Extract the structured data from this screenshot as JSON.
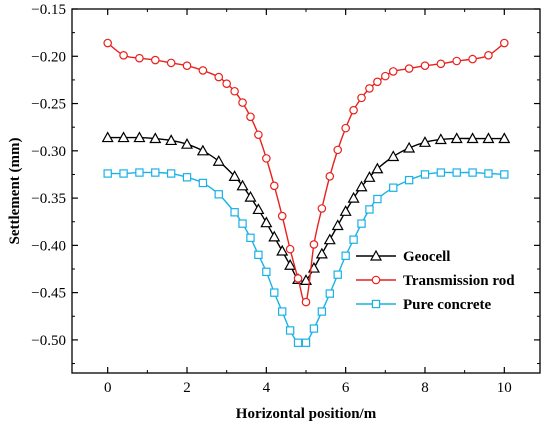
{
  "chart_data": {
    "type": "line",
    "title": "",
    "xlabel": "Horizontal position/m",
    "ylabel": "Settlement (mm)",
    "xlim": [
      -0.9,
      10.9
    ],
    "ylim": [
      -0.535,
      -0.15
    ],
    "xticks": [
      0,
      2,
      4,
      6,
      8,
      10
    ],
    "yticks": [
      -0.15,
      -0.2,
      -0.25,
      -0.3,
      -0.35,
      -0.4,
      -0.45,
      -0.5
    ],
    "xtick_labels": [
      "0",
      "2",
      "4",
      "6",
      "8",
      "10"
    ],
    "ytick_labels": [
      "−0.15",
      "−0.20",
      "−0.25",
      "−0.30",
      "−0.35",
      "−0.40",
      "−0.45",
      "−0.50"
    ],
    "grid": false,
    "legend_position": "lower-right",
    "series": [
      {
        "name": "Geocell",
        "color": "#000000",
        "marker": "triangle",
        "x": [
          0,
          0.4,
          0.8,
          1.2,
          1.6,
          2.0,
          2.4,
          2.8,
          3.2,
          3.4,
          3.6,
          3.8,
          4.0,
          4.2,
          4.4,
          4.6,
          4.8,
          5.0,
          5.2,
          5.4,
          5.6,
          5.8,
          6.0,
          6.2,
          6.4,
          6.6,
          6.8,
          7.2,
          7.6,
          8.0,
          8.4,
          8.8,
          9.2,
          9.6,
          10.0
        ],
        "y": [
          -0.286,
          -0.286,
          -0.286,
          -0.287,
          -0.289,
          -0.293,
          -0.3,
          -0.311,
          -0.327,
          -0.337,
          -0.349,
          -0.362,
          -0.376,
          -0.391,
          -0.406,
          -0.421,
          -0.436,
          -0.437,
          -0.424,
          -0.409,
          -0.394,
          -0.379,
          -0.364,
          -0.35,
          -0.338,
          -0.328,
          -0.319,
          -0.306,
          -0.297,
          -0.291,
          -0.288,
          -0.287,
          -0.287,
          -0.287,
          -0.287
        ]
      },
      {
        "name": "Transmission rod",
        "color": "#e8211c",
        "marker": "circle",
        "x": [
          0,
          0.4,
          0.8,
          1.2,
          1.6,
          2.0,
          2.4,
          2.8,
          3.0,
          3.2,
          3.4,
          3.6,
          3.8,
          4.0,
          4.2,
          4.4,
          4.6,
          4.8,
          5.0,
          5.2,
          5.4,
          5.6,
          5.8,
          6.0,
          6.2,
          6.4,
          6.6,
          6.8,
          7.0,
          7.2,
          7.6,
          8.0,
          8.4,
          8.8,
          9.2,
          9.6,
          10.0
        ],
        "y": [
          -0.186,
          -0.199,
          -0.202,
          -0.204,
          -0.207,
          -0.21,
          -0.215,
          -0.222,
          -0.229,
          -0.237,
          -0.249,
          -0.264,
          -0.283,
          -0.308,
          -0.337,
          -0.369,
          -0.404,
          -0.435,
          -0.46,
          -0.399,
          -0.361,
          -0.327,
          -0.299,
          -0.276,
          -0.257,
          -0.244,
          -0.234,
          -0.227,
          -0.221,
          -0.216,
          -0.213,
          -0.21,
          -0.208,
          -0.205,
          -0.203,
          -0.199,
          -0.186
        ]
      },
      {
        "name": "Pure concrete",
        "color": "#1ab1e6",
        "marker": "square",
        "x": [
          0,
          0.4,
          0.8,
          1.2,
          1.6,
          2.0,
          2.4,
          2.8,
          3.2,
          3.4,
          3.6,
          3.8,
          4.0,
          4.2,
          4.4,
          4.6,
          4.8,
          5.0,
          5.2,
          5.4,
          5.6,
          5.8,
          6.0,
          6.2,
          6.4,
          6.6,
          6.8,
          7.2,
          7.6,
          8.0,
          8.4,
          8.8,
          9.2,
          9.6,
          10.0
        ],
        "y": [
          -0.324,
          -0.324,
          -0.323,
          -0.323,
          -0.324,
          -0.328,
          -0.334,
          -0.346,
          -0.365,
          -0.377,
          -0.392,
          -0.41,
          -0.428,
          -0.45,
          -0.47,
          -0.49,
          -0.503,
          -0.503,
          -0.488,
          -0.47,
          -0.451,
          -0.431,
          -0.411,
          -0.394,
          -0.377,
          -0.362,
          -0.351,
          -0.339,
          -0.331,
          -0.325,
          -0.323,
          -0.323,
          -0.323,
          -0.324,
          -0.325
        ]
      }
    ]
  }
}
